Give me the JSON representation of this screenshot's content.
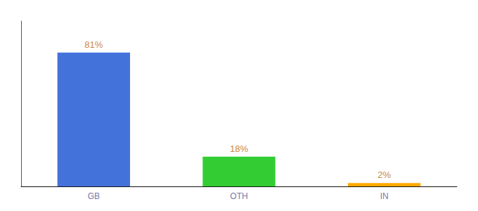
{
  "chart_data": {
    "type": "bar",
    "categories": [
      "GB",
      "OTH",
      "IN"
    ],
    "values": [
      81,
      18,
      2
    ],
    "value_labels": [
      "81%",
      "18%",
      "2%"
    ],
    "colors": [
      "#4472db",
      "#33cc33",
      "#ffaa00"
    ],
    "ylim": [
      0,
      100
    ],
    "grid": false,
    "data_labels": true,
    "tick_labels": "x"
  }
}
